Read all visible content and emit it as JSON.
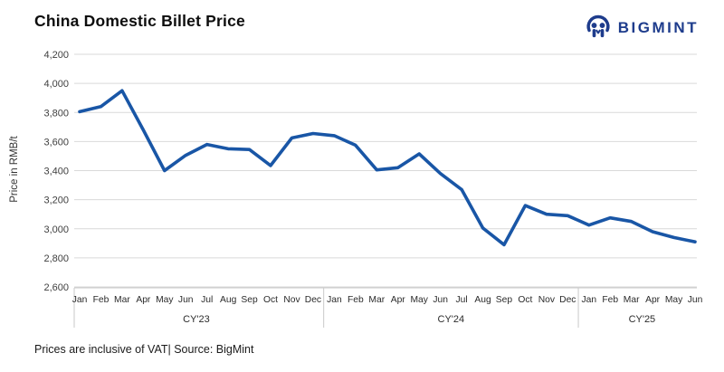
{
  "title": "China Domestic Billet Price",
  "logo": {
    "text": "BIGMINT"
  },
  "footer": "Prices are inclusive of VAT| Source: BigMint",
  "colors": {
    "line": "#1956a6",
    "brand": "#1e3c8c",
    "grid": "#d9d9d9",
    "axis_line": "#c9c9c9",
    "tick_text": "#3f3f3f"
  },
  "chart_data": {
    "type": "line",
    "title": "China Domestic Billet Price",
    "xlabel": "",
    "ylabel": "Price in RMB/t",
    "ylim": [
      2600,
      4200
    ],
    "ytick_step": 200,
    "grid": true,
    "legend": false,
    "categories": [
      "Jan",
      "Feb",
      "Mar",
      "Apr",
      "May",
      "Jun",
      "Jul",
      "Aug",
      "Sep",
      "Oct",
      "Nov",
      "Dec",
      "Jan",
      "Feb",
      "Mar",
      "Apr",
      "May",
      "Jun",
      "Jul",
      "Aug",
      "Sep",
      "Oct",
      "Nov",
      "Dec",
      "Jan",
      "Feb",
      "Mar",
      "Apr",
      "May",
      "Jun"
    ],
    "year_groups": [
      {
        "label": "CY'23",
        "span": 12
      },
      {
        "label": "CY'24",
        "span": 12
      },
      {
        "label": "CY'25",
        "span": 6
      }
    ],
    "values": [
      3805,
      3840,
      3950,
      3680,
      3400,
      3505,
      3580,
      3550,
      3545,
      3435,
      3625,
      3655,
      3640,
      3575,
      3405,
      3420,
      3515,
      3380,
      3270,
      3005,
      2890,
      3160,
      3100,
      3090,
      3025,
      3075,
      3050,
      2980,
      2940,
      2910
    ]
  }
}
